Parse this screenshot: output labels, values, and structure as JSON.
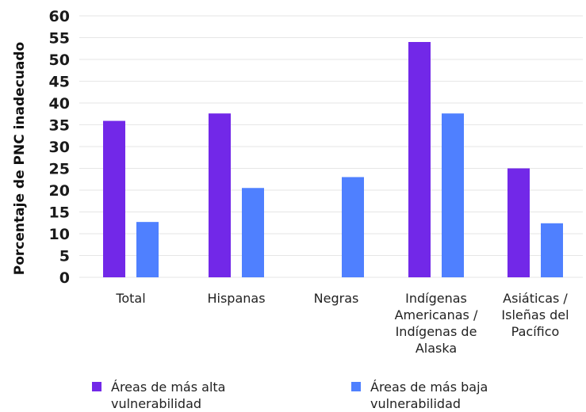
{
  "chart_data": {
    "type": "bar",
    "ylabel": "Porcentaje de PNC inadecuado",
    "xlabel": "",
    "ylim": [
      0,
      60
    ],
    "yticks": [
      0,
      5,
      10,
      15,
      20,
      25,
      30,
      35,
      40,
      45,
      50,
      55,
      60
    ],
    "grid": true,
    "legend_position": "bottom",
    "categories": [
      [
        "Total"
      ],
      [
        "Hispanas"
      ],
      [
        "Negras"
      ],
      [
        "Indígenas",
        "Americanas /",
        "Indígenas de",
        "Alaska"
      ],
      [
        "Asiáticas /",
        "Isleñas del",
        "Pacífico"
      ]
    ],
    "series": [
      {
        "name": "Áreas de más alta vulnerabilidad",
        "color": "#7228e8",
        "values": [
          35.9,
          37.6,
          null,
          54.0,
          25.0
        ]
      },
      {
        "name": "Áreas de más baja vulnerabilidad",
        "color": "#4f80ff",
        "values": [
          12.7,
          20.5,
          23.0,
          37.6,
          12.4
        ]
      }
    ]
  },
  "legend": [
    {
      "line1": "Áreas de más alta",
      "line2": "vulnerabilidad",
      "color": "#7228e8"
    },
    {
      "line1": "Áreas de más baja",
      "line2": "vulnerabilidad",
      "color": "#4f80ff"
    }
  ]
}
